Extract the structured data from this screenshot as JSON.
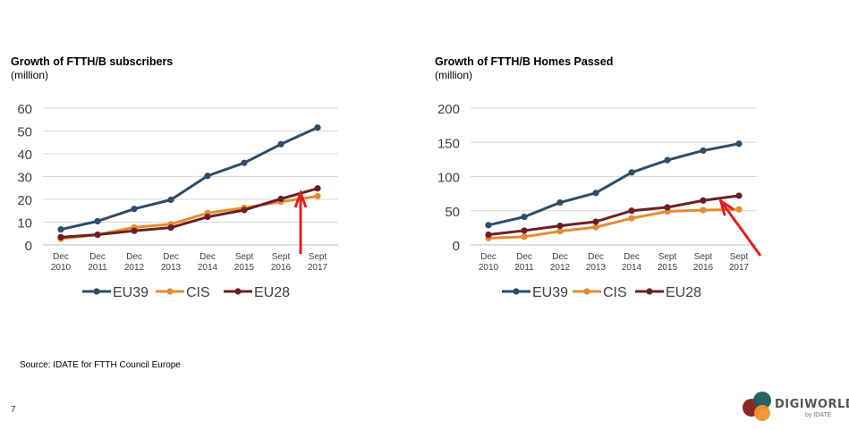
{
  "page_number": "7",
  "source": "Source: IDATE for FTTH Council Europe",
  "logo": {
    "word": "DIGIWORLD",
    "by": "by IDATE"
  },
  "colors": {
    "EU39": "#2e4d6b",
    "CIS": "#e58c2e",
    "EU28": "#6b1f24",
    "arrow": "#e01f1f",
    "grid": "#d9d9d9"
  },
  "chart_data": [
    {
      "type": "line",
      "title": "Growth of FTTH/B subscribers",
      "subtitle": "(million)",
      "categories": [
        [
          "Dec",
          "2010"
        ],
        [
          "Dec",
          "2011"
        ],
        [
          "Dec",
          "2012"
        ],
        [
          "Dec",
          "2013"
        ],
        [
          "Dec",
          "2014"
        ],
        [
          "Sept",
          "2015"
        ],
        [
          "Sept",
          "2016"
        ],
        [
          "Sept",
          "2017"
        ]
      ],
      "ylim": [
        0,
        60
      ],
      "yticks": [
        "0",
        "10",
        "20",
        "30",
        "40",
        "50",
        "60"
      ],
      "grid": true,
      "legend_position": "bottom",
      "series": [
        {
          "name": "EU39",
          "color": "#2e4d6b",
          "values": [
            6.8,
            10.4,
            15.8,
            19.8,
            30.3,
            36,
            44.2,
            51.5
          ]
        },
        {
          "name": "CIS",
          "color": "#e58c2e",
          "values": [
            2.7,
            4.5,
            7.7,
            9.1,
            14,
            16.3,
            18.9,
            21.4
          ]
        },
        {
          "name": "EU28",
          "color": "#6b1f24",
          "values": [
            3.4,
            4.5,
            6.2,
            7.6,
            12.3,
            15.3,
            20.2,
            24.8
          ]
        }
      ]
    },
    {
      "type": "line",
      "title": "Growth of FTTH/B Homes Passed",
      "subtitle": "(million)",
      "categories": [
        [
          "Dec",
          "2010"
        ],
        [
          "Dec",
          "2011"
        ],
        [
          "Dec",
          "2012"
        ],
        [
          "Dec",
          "2013"
        ],
        [
          "Dec",
          "2014"
        ],
        [
          "Sept",
          "2015"
        ],
        [
          "Sept",
          "2016"
        ],
        [
          "Sept",
          "2017"
        ]
      ],
      "ylim": [
        0,
        200
      ],
      "yticks": [
        "0",
        "50",
        "100",
        "150",
        "200"
      ],
      "grid": true,
      "legend_position": "bottom",
      "series": [
        {
          "name": "EU39",
          "color": "#2e4d6b",
          "values": [
            29,
            41,
            62,
            76,
            106,
            124,
            138,
            148
          ]
        },
        {
          "name": "CIS",
          "color": "#e58c2e",
          "values": [
            10,
            12,
            20,
            26,
            39,
            49,
            51,
            52
          ]
        },
        {
          "name": "EU28",
          "color": "#6b1f24",
          "values": [
            15,
            21,
            28,
            34,
            50,
            55,
            65,
            72
          ]
        }
      ]
    }
  ]
}
